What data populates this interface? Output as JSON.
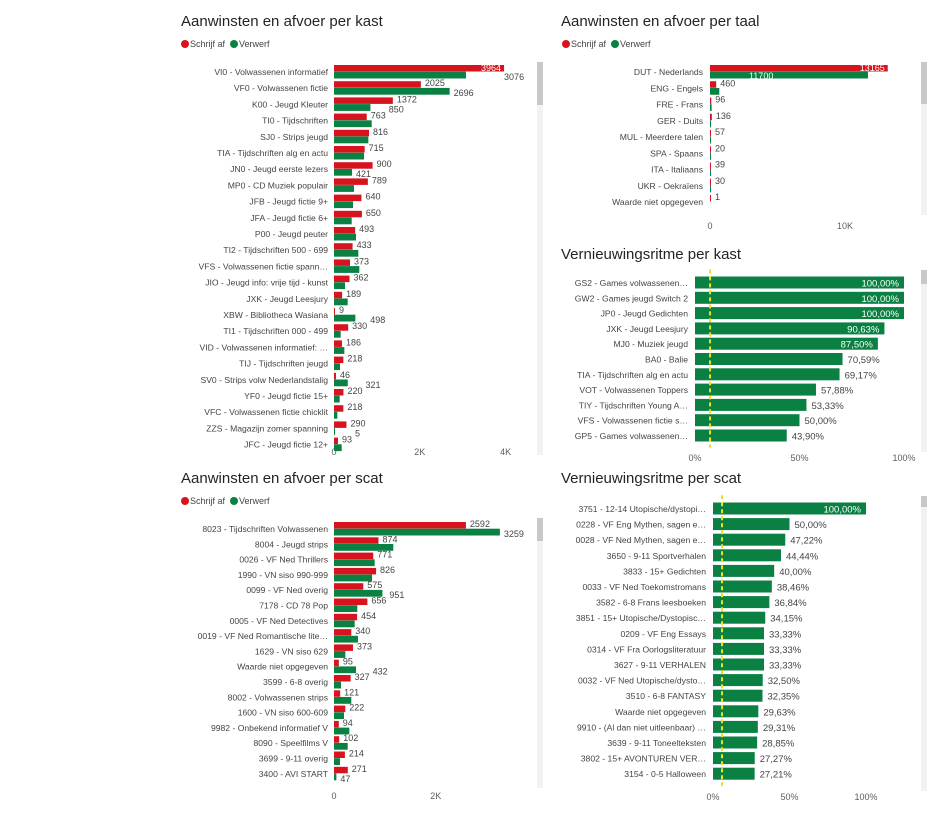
{
  "colors": {
    "schrijf_af": "#d7141e",
    "verwerf": "#0a8043",
    "reference_line": "#f2e01b",
    "scrollbar_track": "#f2f2f2",
    "scrollbar_thumb": "#c8c8c8"
  },
  "chart_data": [
    {
      "id": "kast",
      "type": "bar",
      "orientation": "horizontal",
      "title": "Aanwinsten en afvoer per kast",
      "legend": [
        "Schrijf af",
        "Verwerf"
      ],
      "legend_position": "top-left",
      "categories": [
        "VI0 - Volwassenen informatief",
        "VF0 - Volwassenen fictie",
        "K00 - Jeugd Kleuter",
        "TI0 - Tijdschriften",
        "SJ0 - Strips jeugd",
        "TIA - Tijdschriften alg en actu",
        "JN0 - Jeugd eerste lezers",
        "MP0 - CD Muziek populair",
        "JFB - Jeugd fictie 9+",
        "JFA - Jeugd fictie 6+",
        "P00 - Jeugd peuter",
        "TI2 - Tijdschriften 500 - 699",
        "VFS - Volwassenen fictie spann…",
        "JIO - Jeugd info: vrije tijd - kunst",
        "JXK - Jeugd Leesjury",
        "XBW - Bibliotheca Wasiana",
        "TI1 - Tijdschriften 000 - 499",
        "VID - Volwassenen informatief: …",
        "TIJ - Tijdschriften jeugd",
        "SV0 - Strips volw Nederlandstalig",
        "YF0 - Jeugd fictie 15+",
        "VFC - Volwassenen fictie chicklit",
        "ZZS - Magazijn zomer spanning",
        "JFC - Jeugd fictie 12+"
      ],
      "series": [
        {
          "name": "Schrijf af",
          "values": [
            3964,
            2025,
            1372,
            763,
            816,
            715,
            900,
            789,
            640,
            650,
            493,
            433,
            373,
            362,
            189,
            9,
            330,
            186,
            218,
            46,
            220,
            218,
            290,
            93
          ]
        },
        {
          "name": "Verwerf",
          "values": [
            3076,
            2696,
            850,
            878,
            800,
            700,
            421,
            466,
            443,
            412,
            513,
            567,
            590,
            256,
            319,
            498,
            155,
            241,
            140,
            321,
            132,
            78,
            5,
            179
          ],
          "labels_shown": [
            true,
            true,
            true,
            false,
            false,
            false,
            true,
            false,
            false,
            false,
            false,
            false,
            false,
            false,
            false,
            true,
            false,
            false,
            false,
            true,
            false,
            false,
            true,
            false
          ]
        }
      ],
      "xticks": [
        {
          "value": 0,
          "label": "0"
        },
        {
          "value": 2000,
          "label": "2K"
        },
        {
          "value": 4000,
          "label": "4K"
        }
      ],
      "xlim": [
        0,
        4000
      ]
    },
    {
      "id": "taal",
      "type": "bar",
      "orientation": "horizontal",
      "title": "Aanwinsten en afvoer per taal",
      "legend": [
        "Schrijf af",
        "Verwerf"
      ],
      "legend_position": "top-left",
      "categories": [
        "DUT - Nederlands",
        "ENG - Engels",
        "FRE - Frans",
        "GER - Duits",
        "MUL - Meerdere talen",
        "SPA - Spaans",
        "ITA - Italiaans",
        "UKR - Oekraïens",
        "Waarde niet opgegeven"
      ],
      "series": [
        {
          "name": "Schrijf af",
          "values": [
            13165,
            460,
            96,
            136,
            57,
            20,
            39,
            30,
            1
          ]
        },
        {
          "name": "Verwerf",
          "values": [
            11700,
            690,
            120,
            20,
            40,
            20,
            40,
            5,
            0
          ],
          "labels_shown": [
            true,
            false,
            false,
            false,
            false,
            false,
            false,
            false,
            false
          ]
        }
      ],
      "xticks": [
        {
          "value": 0,
          "label": "0"
        },
        {
          "value": 10000,
          "label": "10K"
        }
      ],
      "xlim": [
        0,
        13165
      ]
    },
    {
      "id": "vern-kast",
      "type": "bar",
      "orientation": "horizontal",
      "title": "Vernieuwingsritme per kast",
      "categories": [
        "GS2 - Games volwassenen…",
        "GW2 - Games jeugd Switch 2",
        "JP0 - Jeugd Gedichten",
        "JXK - Jeugd Leesjury",
        "MJ0 - Muziek jeugd",
        "BA0 - Balie",
        "TIA - Tijdschriften alg en actu",
        "VOT - Volwassenen Toppers",
        "TIY - Tijdschriften Young A…",
        "VFS - Volwassenen fictie s…",
        "GP5 - Games volwassenen…"
      ],
      "values": [
        100.0,
        100.0,
        100.0,
        90.63,
        87.5,
        70.59,
        69.17,
        57.88,
        53.33,
        50.0,
        43.9
      ],
      "value_labels": [
        "100,00%",
        "100,00%",
        "100,00%",
        "90,63%",
        "87,50%",
        "70,59%",
        "69,17%",
        "57,88%",
        "53,33%",
        "50,00%",
        "43,90%"
      ],
      "reference_line": 7.2,
      "xticks": [
        {
          "value": 0,
          "label": "0%"
        },
        {
          "value": 50,
          "label": "50%"
        },
        {
          "value": 100,
          "label": "100%"
        }
      ],
      "xlim": [
        0,
        100
      ]
    },
    {
      "id": "scat",
      "type": "bar",
      "orientation": "horizontal",
      "title": "Aanwinsten en afvoer per scat",
      "legend": [
        "Schrijf af",
        "Verwerf"
      ],
      "legend_position": "top-left",
      "categories": [
        "8023 - Tijdschriften Volwassenen",
        "8004 - Jeugd strips",
        "0026 - VF Ned Thrillers",
        "1990 - VN siso 990-999",
        "0099 - VF Ned overig",
        "7178 - CD 78 Pop",
        "0005 - VF Ned Detectives",
        "0019 - VF Ned Romantische lite…",
        "1629 - VN siso 629",
        "Waarde niet opgegeven",
        "3599 - 6-8 overig",
        "8002 - Volwassenen strips",
        "1600 - VN siso 600-609",
        "9982 - Onbekend informatief V",
        "8090 - Speelfilms V",
        "3699 - 9-11 overig",
        "3400 - AVI START"
      ],
      "series": [
        {
          "name": "Schrijf af",
          "values": [
            2592,
            874,
            771,
            826,
            575,
            656,
            454,
            340,
            373,
            95,
            327,
            121,
            222,
            94,
            102,
            214,
            271
          ]
        },
        {
          "name": "Verwerf",
          "values": [
            3259,
            1165,
            799,
            747,
            951,
            458,
            406,
            471,
            223,
            432,
            138,
            340,
            196,
            301,
            269,
            118,
            47
          ],
          "labels_shown": [
            true,
            false,
            false,
            false,
            true,
            false,
            false,
            false,
            false,
            true,
            false,
            false,
            false,
            false,
            false,
            false,
            true
          ]
        }
      ],
      "xticks": [
        {
          "value": 0,
          "label": "0"
        },
        {
          "value": 2000,
          "label": "2K"
        }
      ],
      "xlim": [
        0,
        3259
      ]
    },
    {
      "id": "vern-scat",
      "type": "bar",
      "orientation": "horizontal",
      "title": "Vernieuwingsritme per scat",
      "categories": [
        "3751 - 12-14 Utopische/dystopi…",
        "0228 - VF Eng Mythen, sagen e…",
        "0028 - VF Ned Mythen, sagen e…",
        "3650 - 9-11 Sportverhalen",
        "3833 - 15+ Gedichten",
        "0033 - VF Ned Toekomstromans",
        "3582 - 6-8 Frans leesboeken",
        "3851 - 15+ Utopische/Dystopisc…",
        "0209 - VF Eng Essays",
        "0314 - VF Fra Oorlogsliteratuur",
        "3627 - 9-11 VERHALEN",
        "0032 - VF Ned Utopische/dysto…",
        "3510 - 6-8 FANTASY",
        "Waarde niet opgegeven",
        "9910 - (Al dan niet uitleenbaar) …",
        "3639 - 9-11 Toneelteksten",
        "3802 - 15+ AVONTUREN VER…",
        "3154 - 0-5 Halloween"
      ],
      "values": [
        100.0,
        50.0,
        47.22,
        44.44,
        40.0,
        38.46,
        36.84,
        34.15,
        33.33,
        33.33,
        33.33,
        32.5,
        32.35,
        29.63,
        29.31,
        28.85,
        27.27,
        27.21
      ],
      "value_labels": [
        "100,00%",
        "50,00%",
        "47,22%",
        "44,44%",
        "40,00%",
        "38,46%",
        "36,84%",
        "34,15%",
        "33,33%",
        "33,33%",
        "33,33%",
        "32,50%",
        "32,35%",
        "29,63%",
        "29,31%",
        "28,85%",
        "27,27%",
        "27,21%"
      ],
      "reference_line": 5.9,
      "xticks": [
        {
          "value": 0,
          "label": "0%"
        },
        {
          "value": 50,
          "label": "50%"
        },
        {
          "value": 100,
          "label": "100%"
        }
      ],
      "xlim": [
        0,
        100
      ]
    }
  ]
}
